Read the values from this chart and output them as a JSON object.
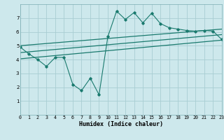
{
  "bg_color": "#cde8ec",
  "grid_color": "#a8cdd2",
  "line_color": "#1a7a6e",
  "xlabel": "Humidex (Indice chaleur)",
  "ylim": [
    0,
    8
  ],
  "xlim": [
    0,
    23
  ],
  "yticks": [
    1,
    2,
    3,
    4,
    5,
    6,
    7
  ],
  "xticks": [
    0,
    1,
    2,
    3,
    4,
    5,
    6,
    7,
    8,
    9,
    10,
    11,
    12,
    13,
    14,
    15,
    16,
    17,
    18,
    19,
    20,
    21,
    22,
    23
  ],
  "main_line_x": [
    0,
    1,
    2,
    3,
    4,
    5,
    6,
    7,
    8,
    9,
    10,
    11,
    12,
    13,
    14,
    15,
    16,
    17,
    18,
    19,
    20,
    21,
    22,
    23
  ],
  "main_line_y": [
    4.9,
    4.4,
    4.0,
    3.5,
    4.15,
    4.15,
    2.2,
    1.75,
    2.65,
    1.45,
    5.65,
    7.5,
    6.9,
    7.4,
    6.65,
    7.35,
    6.6,
    6.3,
    6.2,
    6.1,
    6.05,
    6.1,
    6.05,
    5.45
  ],
  "upper_band_y0": 5.0,
  "upper_band_y1": 6.2,
  "middle_band_y0": 4.5,
  "middle_band_y1": 5.8,
  "lower_band_y0": 4.05,
  "lower_band_y1": 5.4,
  "xlabel_fontsize": 6,
  "tick_fontsize": 4.8
}
